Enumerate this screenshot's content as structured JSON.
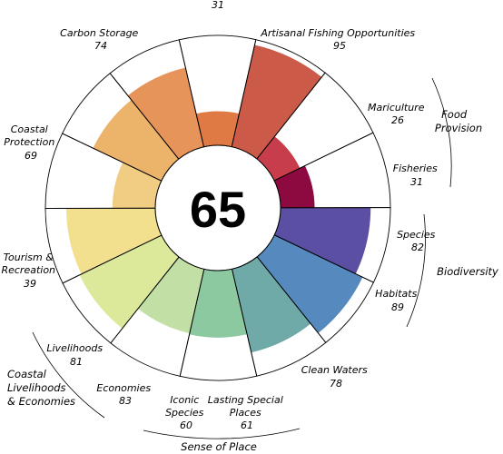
{
  "chart_data": {
    "type": "polar-bar",
    "overall_score": "65",
    "petals": [
      {
        "name": "Fisheries",
        "value": 31,
        "color": "#8c0a3f"
      },
      {
        "name": "Mariculture",
        "value": 26,
        "color": "#c73d4c"
      },
      {
        "name": "Artisanal Fishing Opportunities",
        "value": 95,
        "color": "#cc5a48"
      },
      {
        "name": "",
        "value": 31,
        "color": "#e07a45"
      },
      {
        "name": "Carbon Storage",
        "value": 74,
        "color": "#e6945a"
      },
      {
        "name": "Coastal Protection",
        "value": 69,
        "color": "#ecb36b"
      },
      {
        "name": "Tourism & Recreation",
        "value": 39,
        "color": "#f1cd84"
      },
      {
        "name": "Livelihoods",
        "value": 81,
        "color": "#f3e08f"
      },
      {
        "name": "Economies",
        "value": 83,
        "color": "#dde99a"
      },
      {
        "name": "Iconic Species",
        "value": 60,
        "color": "#c2e0a5"
      },
      {
        "name": "Lasting Special Places",
        "value": 61,
        "color": "#8cc9a0"
      },
      {
        "name": "Clean Waters",
        "value": 78,
        "color": "#6fa9a8"
      },
      {
        "name": "Habitats",
        "value": 89,
        "color": "#5689bd"
      },
      {
        "name": "Species",
        "value": 82,
        "color": "#5a4fa2"
      }
    ],
    "value_range": [
      0,
      100
    ],
    "groups": [
      "Food Provision",
      "Biodiversity",
      "Coastal Livelihoods & Economies",
      "Sense of Place"
    ]
  }
}
